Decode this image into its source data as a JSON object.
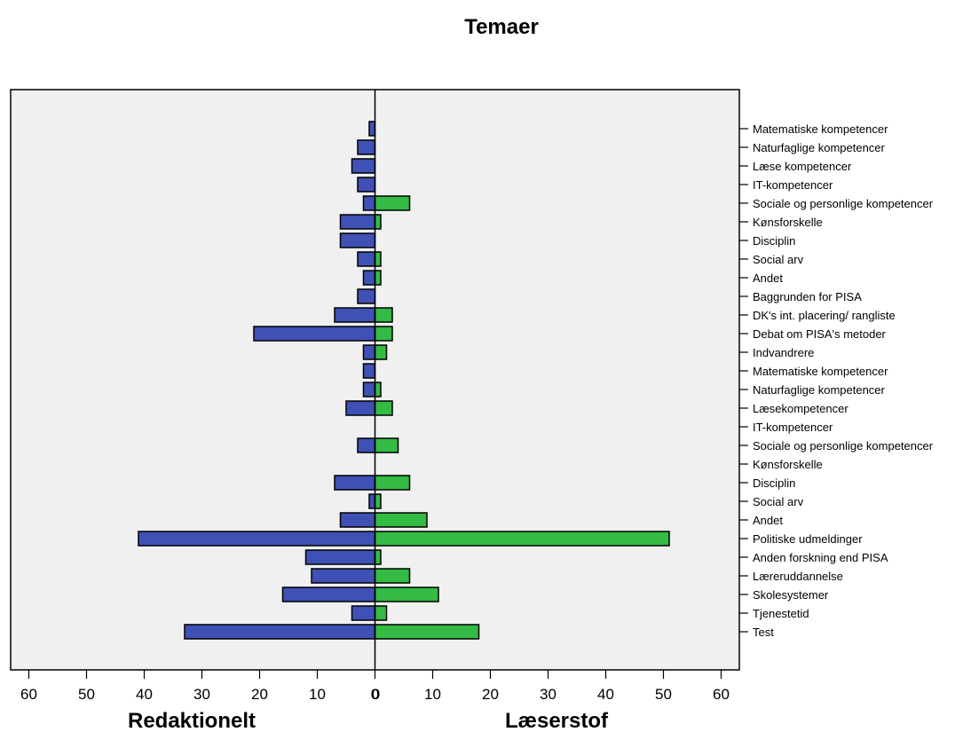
{
  "chart_data": {
    "type": "bar",
    "title": "Temaer",
    "orientation": "horizontal-pyramid",
    "left_label": "Redaktionelt",
    "right_label": "Læserstof",
    "x_ticks_left": [
      60,
      50,
      40,
      30,
      20,
      10,
      0
    ],
    "x_ticks_right": [
      0,
      10,
      20,
      30,
      40,
      50,
      60
    ],
    "xlim": [
      0,
      60
    ],
    "grid": false,
    "categories": [
      "Matematiske kompetencer",
      "Naturfaglige kompetencer",
      "Læse kompetencer",
      "IT-kompetencer",
      "Sociale og personlige kompetencer",
      "Kønsforskelle",
      "Disciplin",
      "Social arv",
      "Andet",
      "Baggrunden for PISA",
      "DK's int. placering/ rangliste",
      "Debat om PISA's metoder",
      "Indvandrere",
      "Matematiske kompetencer",
      "Naturfaglige kompetencer",
      "Læsekompetencer",
      "IT-kompetencer",
      "Sociale og personlige kompetencer",
      "Kønsforskelle",
      "Disciplin",
      "Social arv",
      "Andet",
      "Politiske udmeldinger",
      "Anden forskning end PISA",
      "Læreruddannelse",
      "Skolesystemer",
      "Tjenestetid",
      "Test"
    ],
    "series": [
      {
        "name": "Redaktionelt",
        "color": "#3f51b5",
        "values": [
          1,
          3,
          4,
          3,
          2,
          6,
          6,
          3,
          2,
          3,
          7,
          21,
          2,
          2,
          2,
          5,
          0,
          3,
          0,
          7,
          1,
          6,
          41,
          12,
          11,
          16,
          4,
          33
        ]
      },
      {
        "name": "Læserstof",
        "color": "#33bb44",
        "values": [
          0,
          0,
          0,
          0,
          6,
          1,
          0,
          1,
          1,
          0,
          3,
          3,
          2,
          0,
          1,
          3,
          0,
          4,
          0,
          6,
          1,
          9,
          51,
          1,
          6,
          11,
          2,
          18
        ]
      }
    ]
  }
}
